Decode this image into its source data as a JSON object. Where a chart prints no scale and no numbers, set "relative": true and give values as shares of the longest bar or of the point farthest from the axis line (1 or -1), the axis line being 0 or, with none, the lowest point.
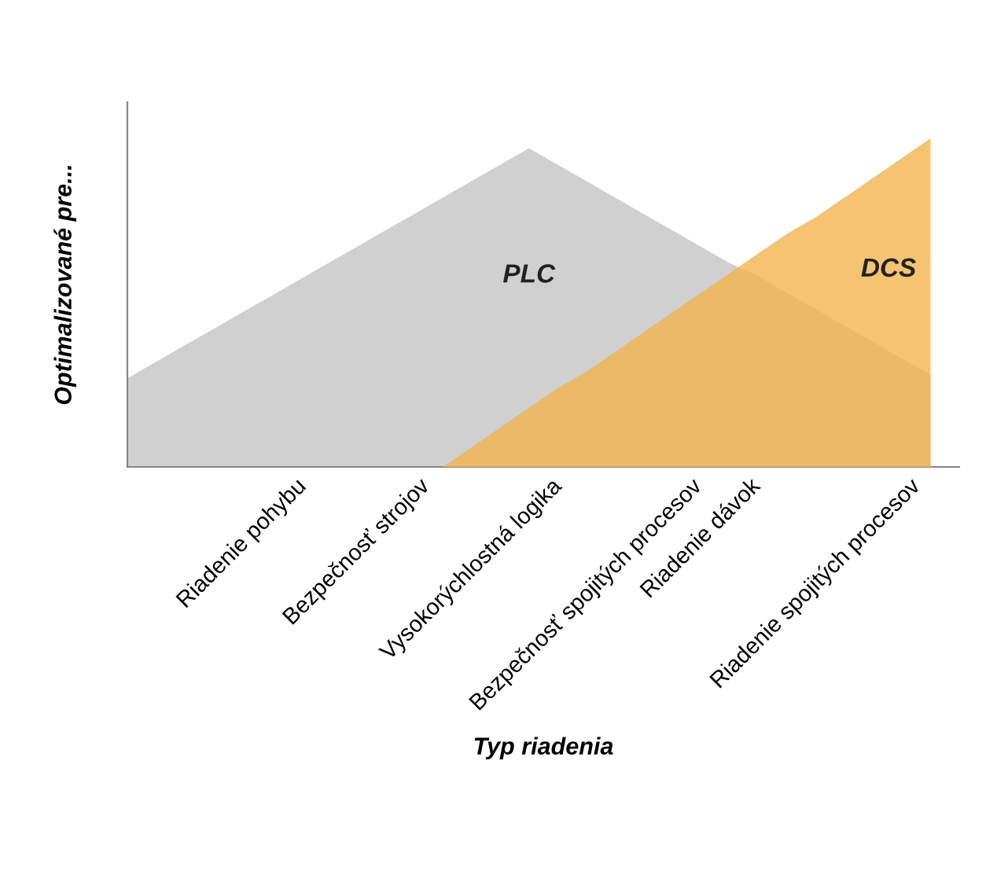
{
  "chart_data": {
    "type": "area",
    "relative": true,
    "xlabel": "Typ riadenia",
    "ylabel": "Optimalizované pre...",
    "categories": [
      null,
      null,
      null,
      null,
      "Riadenie pohybu",
      null,
      null,
      null,
      "Bezpečnosť strojov",
      null,
      null,
      null,
      "Vysokorýchlostná logika",
      null,
      null,
      null,
      "Bezpečnosť spojitých procesov",
      null,
      null,
      null,
      "Riadenie dávok",
      null,
      null,
      null,
      "Riadenie spojitých procesov",
      null,
      null,
      null,
      null
    ],
    "series": [
      {
        "name": "PLC",
        "color": "#d0d0d0",
        "values": [
          0.27,
          0.32,
          0.37,
          0.42,
          0.47,
          0.52,
          0.57,
          0.62,
          0.67,
          0.72,
          0.77,
          0.82,
          0.87,
          0.92,
          0.97,
          0.92,
          0.87,
          0.82,
          0.77,
          0.72,
          0.67,
          0.62,
          0.58,
          0.53,
          0.48,
          0.43,
          0.38,
          0.33,
          0.28
        ]
      },
      {
        "name": "DCS",
        "color": "#f4b24a",
        "values": [
          null,
          null,
          null,
          null,
          null,
          null,
          null,
          null,
          null,
          null,
          null,
          0,
          0.06,
          0.12,
          0.18,
          0.24,
          0.29,
          0.35,
          0.41,
          0.47,
          0.53,
          0.59,
          0.65,
          0.71,
          0.76,
          0.82,
          0.88,
          0.94,
          1
        ]
      }
    ],
    "grid": false,
    "legend": false
  }
}
